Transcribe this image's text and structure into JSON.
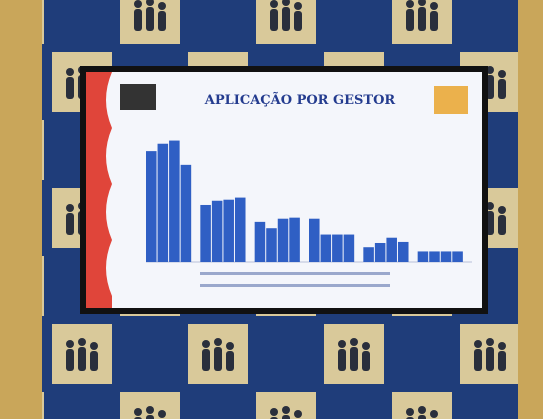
{
  "chart_data": {
    "type": "bar",
    "title": "APLICAÇÃO POR GESTOR",
    "categories": [
      null,
      null,
      null,
      null,
      null,
      null
    ],
    "series": [
      {
        "color": "#2f5fc4",
        "values": [
          105,
          54,
          38,
          41,
          14,
          10
        ]
      },
      {
        "color": "#2f5fc4",
        "values": [
          112,
          58,
          32,
          26,
          18,
          10
        ]
      },
      {
        "color": "#2f5fc4",
        "values": [
          115,
          59,
          41,
          26,
          23,
          10
        ]
      },
      {
        "color": "#2f5fc4",
        "values": [
          92,
          61,
          42,
          26,
          19,
          10
        ]
      }
    ],
    "ylim": [
      0,
      125
    ]
  }
}
